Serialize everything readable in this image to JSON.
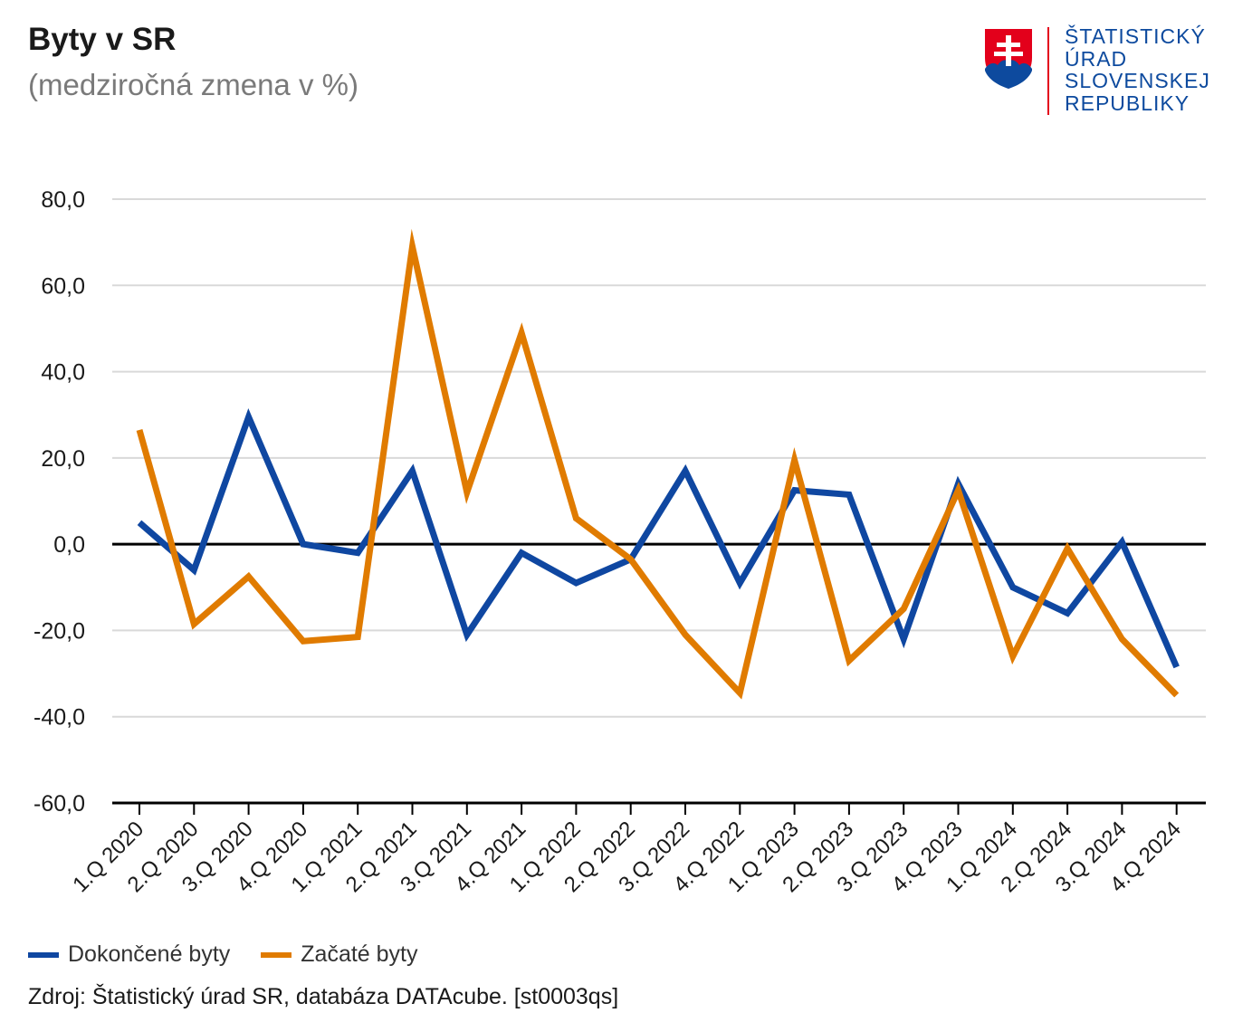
{
  "header": {
    "title": "Byty v SR",
    "subtitle": "(medziročná zmena v %)"
  },
  "logo": {
    "lines": [
      "ŠTATISTICKÝ",
      "ÚRAD",
      "SLOVENSKEJ",
      "REPUBLIKY"
    ],
    "text_color": "#0d4a9e",
    "accent_color": "#e3001b",
    "shield_icon": "slovak-coat-of-arms-icon"
  },
  "chart_data": {
    "type": "line",
    "title": "Byty v SR",
    "subtitle": "(medziročná zmena v %)",
    "categories": [
      "1.Q 2020",
      "2.Q 2020",
      "3.Q 2020",
      "4.Q 2020",
      "1.Q 2021",
      "2.Q 2021",
      "3.Q 2021",
      "4.Q 2021",
      "1.Q 2022",
      "2.Q 2022",
      "3.Q 2022",
      "4.Q 2022",
      "1.Q 2023",
      "2.Q 2023",
      "3.Q 2023",
      "4.Q 2023",
      "1.Q 2024",
      "2.Q 2024",
      "3.Q 2024",
      "4.Q 2024"
    ],
    "series": [
      {
        "name": "Dokončené byty",
        "color": "#0f47a1",
        "values": [
          5.0,
          -6.0,
          29.5,
          0.0,
          -2.0,
          17.0,
          -21.0,
          -2.0,
          -9.0,
          -3.5,
          17.0,
          -9.0,
          12.5,
          11.5,
          -22.0,
          14.0,
          -10.0,
          -16.0,
          0.5,
          -28.5
        ]
      },
      {
        "name": "Začaté byty",
        "color": "#e07b00",
        "values": [
          26.5,
          -18.5,
          -7.5,
          -22.5,
          -21.5,
          69.0,
          12.0,
          49.0,
          6.0,
          -3.5,
          -21.0,
          -34.5,
          19.5,
          -27.0,
          -15.0,
          12.5,
          -26.0,
          -1.0,
          -22.0,
          -35.0
        ]
      }
    ],
    "ylim": [
      -60,
      80
    ],
    "yticks": [
      80,
      60,
      40,
      20,
      0,
      -20,
      -40,
      -60
    ],
    "ytick_labels": [
      "80,0",
      "60,0",
      "40,0",
      "20,0",
      "0,0",
      "-20,0",
      "-40,0",
      "-60,0"
    ],
    "xlabel": "",
    "ylabel": "",
    "grid": true,
    "legend_position": "bottom-left",
    "zero_line_color": "#000000",
    "grid_color": "#d9d9d9"
  },
  "source": "Zdroj: Štatistický úrad SR, databáza DATAcube. [st0003qs]"
}
